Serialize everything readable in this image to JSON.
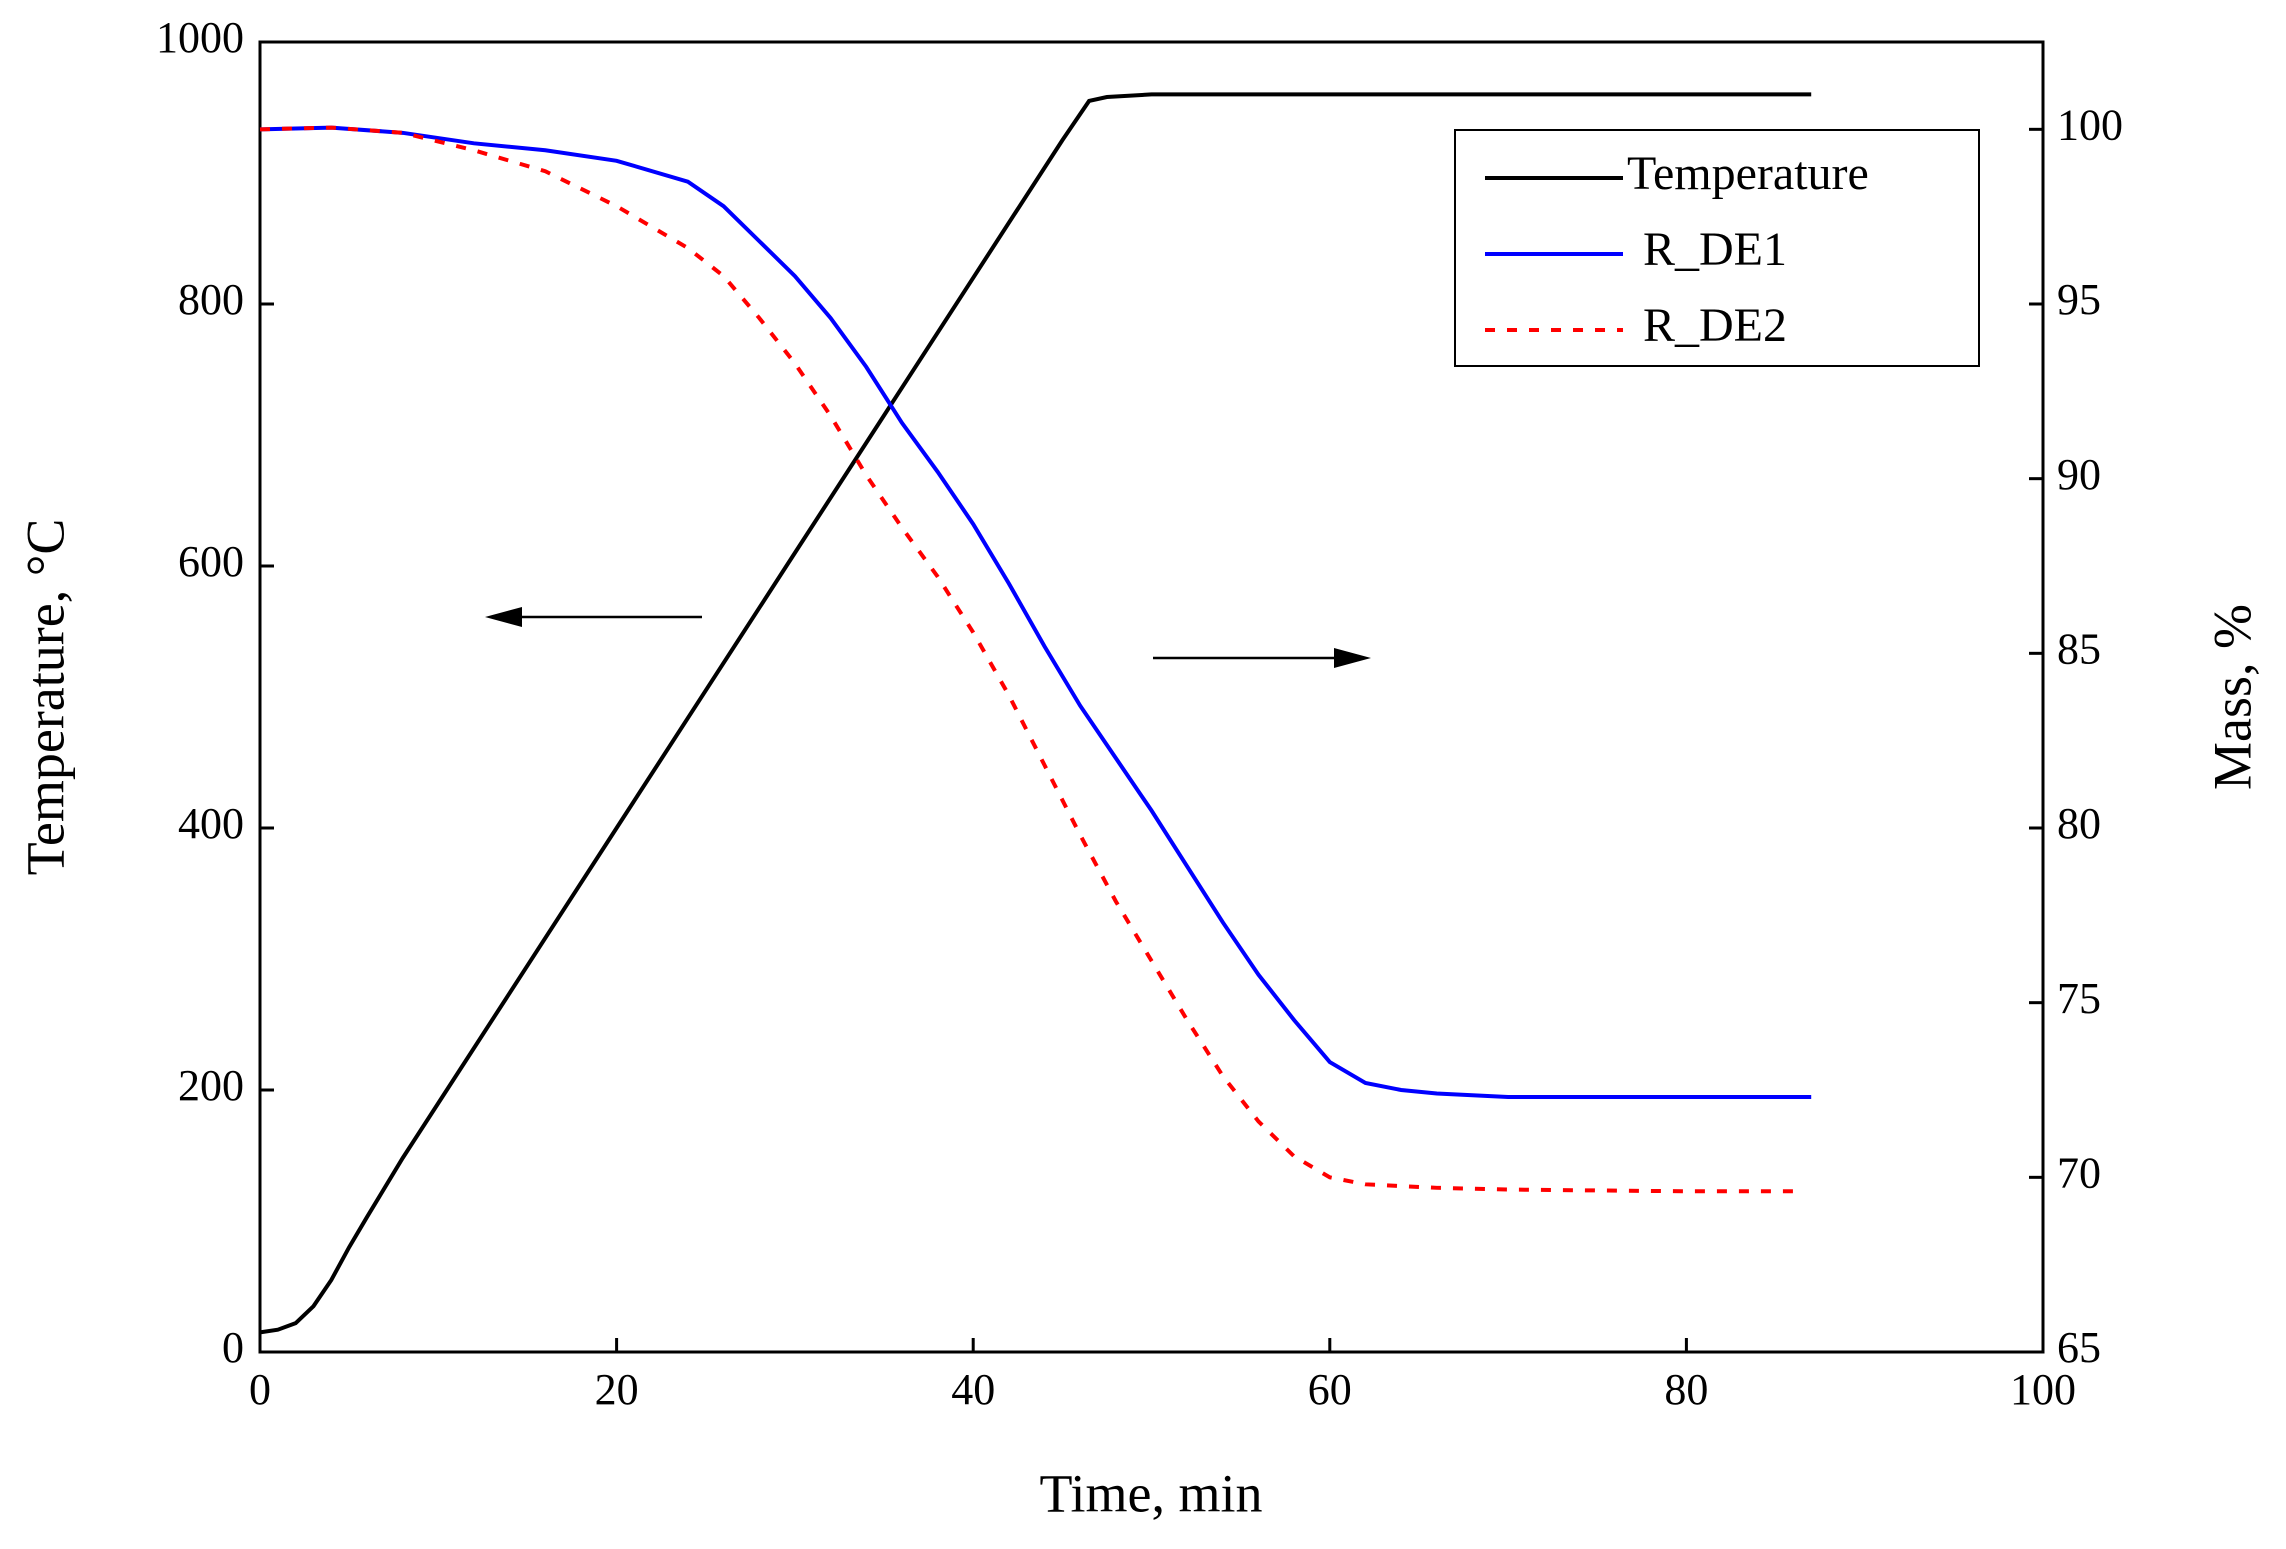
{
  "chart_data": {
    "type": "line",
    "xlabel": "Time, min",
    "ylabel": "Temperature, °C",
    "y2label": "Mass, %",
    "xlim": [
      0,
      100
    ],
    "xticks": [
      0,
      20,
      40,
      60,
      80,
      100
    ],
    "ylim": [
      0,
      1000
    ],
    "yticks": [
      0,
      200,
      400,
      600,
      800,
      1000
    ],
    "y2lim": [
      65,
      102.5
    ],
    "y2ticks": [
      65,
      70,
      75,
      80,
      85,
      90,
      95,
      100
    ],
    "legend": "upper right",
    "series": [
      {
        "name": "Temperature",
        "color": "#000000",
        "dash": false,
        "x": [
          0,
          1,
          2,
          3,
          4,
          5,
          6,
          8,
          10,
          15,
          20,
          25,
          30,
          35,
          40,
          45,
          46.5,
          47.5,
          50,
          60,
          70,
          80,
          87
        ],
        "values": [
          15,
          17,
          22,
          35,
          55,
          80,
          103,
          148,
          190,
          295,
          400,
          505,
          610,
          715,
          820,
          925,
          955,
          958,
          960,
          960,
          960,
          960,
          960
        ]
      },
      {
        "name": "R_DE1",
        "color": "#0000ff",
        "dash": false,
        "axis": "y2",
        "x": [
          0,
          4,
          8,
          12,
          16,
          20,
          24,
          26,
          28,
          30,
          32,
          34,
          36,
          38,
          40,
          42,
          44,
          46,
          48,
          50,
          52,
          54,
          56,
          58,
          60,
          62,
          64,
          66,
          70,
          80,
          87
        ],
        "values": [
          100,
          100.05,
          99.9,
          99.6,
          99.4,
          99.1,
          98.5,
          97.8,
          96.8,
          95.8,
          94.6,
          93.2,
          91.6,
          90.2,
          88.7,
          87.0,
          85.2,
          83.5,
          82.0,
          80.5,
          78.9,
          77.3,
          75.8,
          74.5,
          73.3,
          72.7,
          72.5,
          72.4,
          72.3,
          72.3,
          72.3
        ]
      },
      {
        "name": "R_DE2",
        "color": "#ff0000",
        "dash": true,
        "axis": "y2",
        "x": [
          0,
          4,
          8,
          12,
          16,
          20,
          24,
          26,
          28,
          30,
          32,
          34,
          36,
          38,
          40,
          42,
          44,
          46,
          48,
          50,
          52,
          54,
          56,
          58,
          60,
          62,
          66,
          70,
          80,
          86
        ],
        "values": [
          100,
          100.05,
          99.9,
          99.4,
          98.8,
          97.8,
          96.6,
          95.8,
          94.6,
          93.3,
          91.8,
          90.1,
          88.6,
          87.2,
          85.6,
          83.8,
          81.8,
          79.8,
          77.9,
          76.2,
          74.5,
          72.9,
          71.6,
          70.6,
          70.0,
          69.8,
          69.7,
          69.65,
          69.6,
          69.6
        ]
      }
    ]
  }
}
